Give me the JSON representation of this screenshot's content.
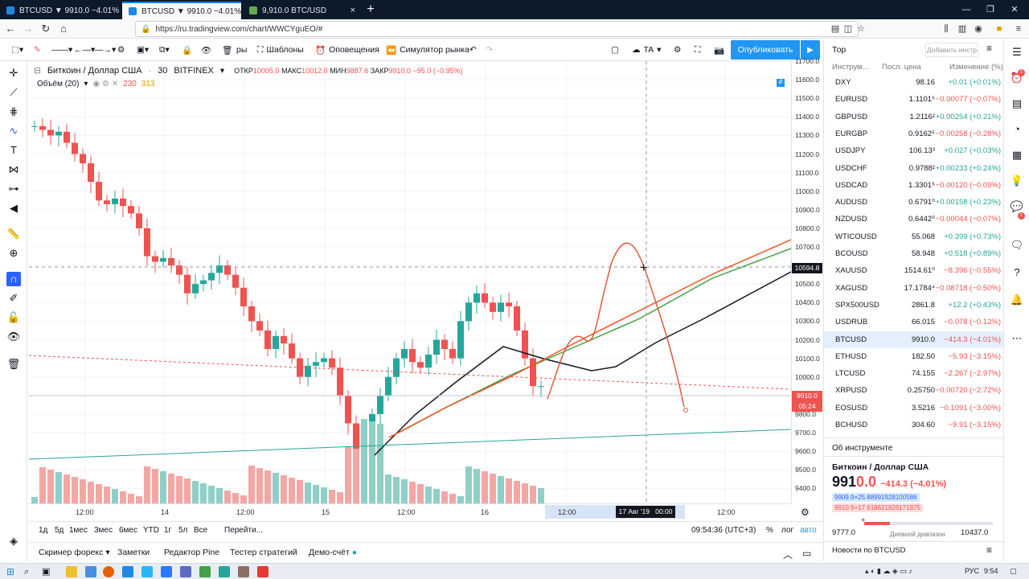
{
  "browser": {
    "tabs": [
      {
        "title": "BTCUSD ▼ 9910.0 −4.01% Tradi",
        "color": "#1e88e5"
      },
      {
        "title": "BTCUSD ▼ 9910.0 −4.01% TA",
        "color": "#1e88e5"
      },
      {
        "title": "9,910.0 BTC/USD",
        "color": "#6aa84f"
      }
    ],
    "url": "https://ru.tradingview.com/chart/WWCYguEO/#"
  },
  "toolbar": {
    "ry_fragment": "ры",
    "templates": "Шаблоны",
    "alerts": "Оповещения",
    "simulator": "Симулятор рынка",
    "ta": "TA",
    "publish": "Опубликовать"
  },
  "legend": {
    "symbol": "Биткоин / Доллар США",
    "interval": "30",
    "exchange": "BITFINEX",
    "open_label": "ОТКР",
    "open": "10005.0",
    "high_label": "МАКС",
    "high": "10012.0",
    "low_label": "МИН",
    "low": "9887.6",
    "close_label": "ЗАКР",
    "close": "9910.0",
    "change": "−95.0 (−0.95%)",
    "volume_label": "Объём (20)",
    "volume_v1": "230",
    "volume_v2": "313"
  },
  "price_axis": {
    "ticks": [
      "11700.0",
      "11600.0",
      "11500.0",
      "11400.0",
      "11300.0",
      "11200.0",
      "11100.0",
      "11000.0",
      "10900.0",
      "10800.0",
      "10700.0",
      "10600.0",
      "10500.0",
      "10400.0",
      "10300.0",
      "10200.0",
      "10100.0",
      "10000.0",
      "9900.0",
      "9800.0",
      "9700.0",
      "9600.0",
      "9500.0",
      "9400.0"
    ],
    "crosshair_price": "10594.8",
    "last_price": "9910.0",
    "countdown": "05:24"
  },
  "time_axis": {
    "ticks": [
      "12:00",
      "14",
      "12:00",
      "15",
      "12:00",
      "16",
      "12:00",
      "12:00"
    ],
    "crosshair_time": "17 Авг '19",
    "crosshair_clock": "00:00"
  },
  "range_bar": {
    "ranges": [
      "1д",
      "5д",
      "1мес",
      "3мес",
      "6мес",
      "YTD",
      "1г",
      "5л",
      "Все"
    ],
    "goto": "Перейти...",
    "clock": "09:54:36 (UTC+3)",
    "pct": "%",
    "log": "лог",
    "auto": "авто"
  },
  "bottom_tabs": [
    "Скринер форекс",
    "Заметки",
    "Редактор Pine",
    "Тестер стратегий",
    "Демо-счёт"
  ],
  "watchlist": {
    "title": "Тор",
    "add_placeholder": "Добавить инстр",
    "col_symbol": "Инструм...",
    "col_last": "Посл. цена",
    "col_change": "Изменение (%)",
    "rows": [
      {
        "sym": "DXY",
        "last": "98.16",
        "chg": "+0.01 (+0.01%)",
        "dir": "up"
      },
      {
        "sym": "EURUSD",
        "last": "1.1101⁶",
        "chg": "−0.00077 (−0.07%)",
        "dir": "dn"
      },
      {
        "sym": "GBPUSD",
        "last": "1.2116²",
        "chg": "+0.00254 (+0.21%)",
        "dir": "up"
      },
      {
        "sym": "EURGBP",
        "last": "0.9162⁵",
        "chg": "−0.00258 (−0.28%)",
        "dir": "dn"
      },
      {
        "sym": "USDJPY",
        "last": "106.13³",
        "chg": "+0.027 (+0.03%)",
        "dir": "up"
      },
      {
        "sym": "USDCHF",
        "last": "0.9788²",
        "chg": "+0.00233 (+0.24%)",
        "dir": "up"
      },
      {
        "sym": "USDCAD",
        "last": "1.3301⁶",
        "chg": "−0.00120 (−0.09%)",
        "dir": "dn"
      },
      {
        "sym": "AUDUSD",
        "last": "0.6791⁰",
        "chg": "+0.00158 (+0.23%)",
        "dir": "up"
      },
      {
        "sym": "NZDUSD",
        "last": "0.6442⁰",
        "chg": "−0.00044 (−0.07%)",
        "dir": "dn"
      },
      {
        "sym": "WTICOUSD",
        "last": "55.068",
        "chg": "+0.399 (+0.73%)",
        "dir": "up"
      },
      {
        "sym": "BCOUSD",
        "last": "58.948",
        "chg": "+0.518 (+0.89%)",
        "dir": "up"
      },
      {
        "sym": "XAUUSD",
        "last": "1514.61⁰",
        "chg": "−8.396 (−0.55%)",
        "dir": "dn"
      },
      {
        "sym": "XAGUSD",
        "last": "17.1784⁴",
        "chg": "−0.08718 (−0.50%)",
        "dir": "dn"
      },
      {
        "sym": "SPX500USD",
        "last": "2861.8",
        "chg": "+12.2 (+0.43%)",
        "dir": "up"
      },
      {
        "sym": "USDRUB",
        "last": "66.015",
        "chg": "−0.078 (−0.12%)",
        "dir": "dn"
      },
      {
        "sym": "BTCUSD",
        "last": "9910.0",
        "chg": "−414.3 (−4.01%)",
        "dir": "dn"
      },
      {
        "sym": "ETHUSD",
        "last": "182.50",
        "chg": "−5.93 (−3.15%)",
        "dir": "dn"
      },
      {
        "sym": "LTCUSD",
        "last": "74.155",
        "chg": "−2.267 (−2.97%)",
        "dir": "dn"
      },
      {
        "sym": "XRPUSD",
        "last": "0.25750",
        "chg": "−0.00720 (−2.72%)",
        "dir": "dn"
      },
      {
        "sym": "EOSUSD",
        "last": "3.5216",
        "chg": "−0.1091 (−3.00%)",
        "dir": "dn"
      },
      {
        "sym": "BCHUSD",
        "last": "304.60",
        "chg": "−9.91 (−3.15%)",
        "dir": "dn"
      }
    ],
    "selected": "BTCUSD"
  },
  "details": {
    "header": "Об инструменте",
    "name": "Биткоин / Доллар США",
    "price_main": "991",
    "price_tail": "0.0",
    "change": "−414.3 (−4.01%)",
    "bid": "9909.9×25.88991928100586",
    "ask": "9910.9×17.618621826171875",
    "range_low": "9777.0",
    "range_label": "Дневной диапазон",
    "range_high": "10437.0",
    "news": "Новости по BTCUSD"
  },
  "taskbar": {
    "lang": "РУС",
    "time": "9:54"
  },
  "colors": {
    "up": "#26a69a",
    "down": "#ef5350",
    "accent": "#2196f3"
  }
}
